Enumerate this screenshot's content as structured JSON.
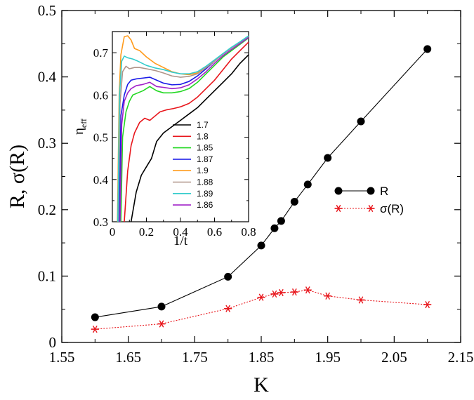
{
  "chart_data": [
    {
      "type": "line",
      "xlabel": "K",
      "ylabel": "R, σ(R)",
      "xlim": [
        1.55,
        2.15
      ],
      "ylim": [
        0,
        0.5
      ],
      "x_ticks": [
        "1.55",
        "1.65",
        "1.75",
        "1.85",
        "1.95",
        "2.05",
        "2.15"
      ],
      "y_ticks": [
        "0",
        "0.1",
        "0.2",
        "0.3",
        "0.4",
        "0.5"
      ],
      "grid": false,
      "legend_position": "right",
      "series": [
        {
          "name": "R",
          "color": "#000000",
          "marker": "filled-circle",
          "line": "solid",
          "points": [
            [
              1.6,
              0.038
            ],
            [
              1.7,
              0.054
            ],
            [
              1.8,
              0.099
            ],
            [
              1.85,
              0.146
            ],
            [
              1.87,
              0.172
            ],
            [
              1.88,
              0.183
            ],
            [
              1.9,
              0.212
            ],
            [
              1.92,
              0.238
            ],
            [
              1.95,
              0.278
            ],
            [
              2.0,
              0.333
            ],
            [
              2.1,
              0.442
            ]
          ]
        },
        {
          "name": "σ(R)",
          "color": "#e8151b",
          "marker": "asterisk",
          "line": "dotted",
          "points": [
            [
              1.6,
              0.02
            ],
            [
              1.7,
              0.028
            ],
            [
              1.8,
              0.051
            ],
            [
              1.85,
              0.068
            ],
            [
              1.87,
              0.073
            ],
            [
              1.88,
              0.075
            ],
            [
              1.9,
              0.076
            ],
            [
              1.92,
              0.079
            ],
            [
              1.95,
              0.07
            ],
            [
              2.0,
              0.064
            ],
            [
              2.1,
              0.057
            ]
          ]
        }
      ]
    },
    {
      "type": "line",
      "xlabel": "1/t",
      "ylabel": "η",
      "ylabel_sub": "eff",
      "xlim": [
        0,
        0.8
      ],
      "ylim": [
        0.3,
        0.75
      ],
      "x_ticks": [
        "0",
        "0.2",
        "0.4",
        "0.6",
        "0.8"
      ],
      "y_ticks": [
        "0.3",
        "0.4",
        "0.5",
        "0.6",
        "0.7"
      ],
      "legend_position": "inside-bottom-right",
      "series": [
        {
          "name": "1.7",
          "color": "#000000",
          "points": [
            [
              0.11,
              0.3
            ],
            [
              0.14,
              0.37
            ],
            [
              0.17,
              0.41
            ],
            [
              0.2,
              0.43
            ],
            [
              0.23,
              0.45
            ],
            [
              0.26,
              0.49
            ],
            [
              0.3,
              0.51
            ],
            [
              0.35,
              0.525
            ],
            [
              0.4,
              0.54
            ],
            [
              0.45,
              0.555
            ],
            [
              0.5,
              0.57
            ],
            [
              0.55,
              0.59
            ],
            [
              0.6,
              0.61
            ],
            [
              0.65,
              0.63
            ],
            [
              0.7,
              0.65
            ],
            [
              0.75,
              0.675
            ],
            [
              0.8,
              0.695
            ]
          ]
        },
        {
          "name": "1.8",
          "color": "#e8151b",
          "points": [
            [
              0.07,
              0.3
            ],
            [
              0.09,
              0.42
            ],
            [
              0.11,
              0.48
            ],
            [
              0.13,
              0.51
            ],
            [
              0.16,
              0.535
            ],
            [
              0.19,
              0.545
            ],
            [
              0.22,
              0.54
            ],
            [
              0.25,
              0.55
            ],
            [
              0.28,
              0.56
            ],
            [
              0.32,
              0.565
            ],
            [
              0.36,
              0.568
            ],
            [
              0.4,
              0.572
            ],
            [
              0.45,
              0.58
            ],
            [
              0.5,
              0.595
            ],
            [
              0.55,
              0.615
            ],
            [
              0.6,
              0.635
            ],
            [
              0.65,
              0.66
            ],
            [
              0.7,
              0.685
            ],
            [
              0.75,
              0.705
            ],
            [
              0.8,
              0.725
            ]
          ]
        },
        {
          "name": "1.85",
          "color": "#22d822",
          "points": [
            [
              0.05,
              0.3
            ],
            [
              0.06,
              0.5
            ],
            [
              0.08,
              0.56
            ],
            [
              0.1,
              0.585
            ],
            [
              0.12,
              0.6
            ],
            [
              0.15,
              0.605
            ],
            [
              0.18,
              0.61
            ],
            [
              0.22,
              0.62
            ],
            [
              0.26,
              0.61
            ],
            [
              0.3,
              0.605
            ],
            [
              0.35,
              0.605
            ],
            [
              0.4,
              0.608
            ],
            [
              0.45,
              0.615
            ],
            [
              0.5,
              0.63
            ],
            [
              0.55,
              0.65
            ],
            [
              0.6,
              0.67
            ],
            [
              0.65,
              0.69
            ],
            [
              0.7,
              0.705
            ],
            [
              0.75,
              0.72
            ],
            [
              0.8,
              0.735
            ]
          ]
        },
        {
          "name": "1.87",
          "color": "#1a1ae8",
          "points": [
            [
              0.04,
              0.3
            ],
            [
              0.05,
              0.55
            ],
            [
              0.07,
              0.6
            ],
            [
              0.09,
              0.625
            ],
            [
              0.11,
              0.635
            ],
            [
              0.14,
              0.638
            ],
            [
              0.18,
              0.64
            ],
            [
              0.22,
              0.642
            ],
            [
              0.26,
              0.635
            ],
            [
              0.3,
              0.628
            ],
            [
              0.35,
              0.624
            ],
            [
              0.4,
              0.625
            ],
            [
              0.45,
              0.632
            ],
            [
              0.5,
              0.645
            ],
            [
              0.55,
              0.662
            ],
            [
              0.6,
              0.68
            ],
            [
              0.65,
              0.697
            ],
            [
              0.7,
              0.712
            ],
            [
              0.75,
              0.725
            ],
            [
              0.8,
              0.738
            ]
          ]
        },
        {
          "name": "1.9",
          "color": "#ff9a1a",
          "points": [
            [
              0.03,
              0.3
            ],
            [
              0.04,
              0.6
            ],
            [
              0.05,
              0.695
            ],
            [
              0.07,
              0.738
            ],
            [
              0.09,
              0.74
            ],
            [
              0.11,
              0.73
            ],
            [
              0.13,
              0.71
            ],
            [
              0.16,
              0.705
            ],
            [
              0.2,
              0.69
            ],
            [
              0.25,
              0.675
            ],
            [
              0.3,
              0.665
            ],
            [
              0.35,
              0.655
            ],
            [
              0.4,
              0.65
            ],
            [
              0.45,
              0.648
            ],
            [
              0.5,
              0.652
            ],
            [
              0.55,
              0.665
            ],
            [
              0.6,
              0.68
            ],
            [
              0.65,
              0.697
            ],
            [
              0.7,
              0.712
            ],
            [
              0.75,
              0.725
            ],
            [
              0.8,
              0.738
            ]
          ]
        },
        {
          "name": "1.88",
          "color": "#b0958a",
          "points": [
            [
              0.035,
              0.3
            ],
            [
              0.045,
              0.58
            ],
            [
              0.06,
              0.655
            ],
            [
              0.08,
              0.668
            ],
            [
              0.1,
              0.662
            ],
            [
              0.13,
              0.665
            ],
            [
              0.16,
              0.665
            ],
            [
              0.2,
              0.662
            ],
            [
              0.25,
              0.658
            ],
            [
              0.3,
              0.652
            ],
            [
              0.35,
              0.645
            ],
            [
              0.4,
              0.642
            ],
            [
              0.45,
              0.644
            ],
            [
              0.5,
              0.65
            ],
            [
              0.55,
              0.665
            ],
            [
              0.6,
              0.68
            ],
            [
              0.65,
              0.697
            ],
            [
              0.7,
              0.712
            ],
            [
              0.75,
              0.725
            ],
            [
              0.8,
              0.738
            ]
          ]
        },
        {
          "name": "1.89",
          "color": "#33cccc",
          "points": [
            [
              0.032,
              0.3
            ],
            [
              0.042,
              0.6
            ],
            [
              0.055,
              0.68
            ],
            [
              0.07,
              0.692
            ],
            [
              0.09,
              0.688
            ],
            [
              0.12,
              0.685
            ],
            [
              0.15,
              0.68
            ],
            [
              0.2,
              0.67
            ],
            [
              0.25,
              0.664
            ],
            [
              0.3,
              0.66
            ],
            [
              0.35,
              0.654
            ],
            [
              0.4,
              0.65
            ],
            [
              0.45,
              0.65
            ],
            [
              0.5,
              0.655
            ],
            [
              0.55,
              0.668
            ],
            [
              0.6,
              0.683
            ],
            [
              0.65,
              0.698
            ],
            [
              0.7,
              0.713
            ],
            [
              0.75,
              0.726
            ],
            [
              0.8,
              0.74
            ]
          ]
        },
        {
          "name": "1.86",
          "color": "#a020c8",
          "points": [
            [
              0.045,
              0.3
            ],
            [
              0.055,
              0.53
            ],
            [
              0.07,
              0.585
            ],
            [
              0.09,
              0.605
            ],
            [
              0.11,
              0.615
            ],
            [
              0.14,
              0.622
            ],
            [
              0.18,
              0.625
            ],
            [
              0.22,
              0.63
            ],
            [
              0.26,
              0.62
            ],
            [
              0.3,
              0.618
            ],
            [
              0.35,
              0.615
            ],
            [
              0.4,
              0.617
            ],
            [
              0.45,
              0.624
            ],
            [
              0.5,
              0.638
            ],
            [
              0.55,
              0.655
            ],
            [
              0.6,
              0.675
            ],
            [
              0.65,
              0.693
            ],
            [
              0.7,
              0.708
            ],
            [
              0.75,
              0.722
            ],
            [
              0.8,
              0.736
            ]
          ]
        }
      ]
    }
  ]
}
